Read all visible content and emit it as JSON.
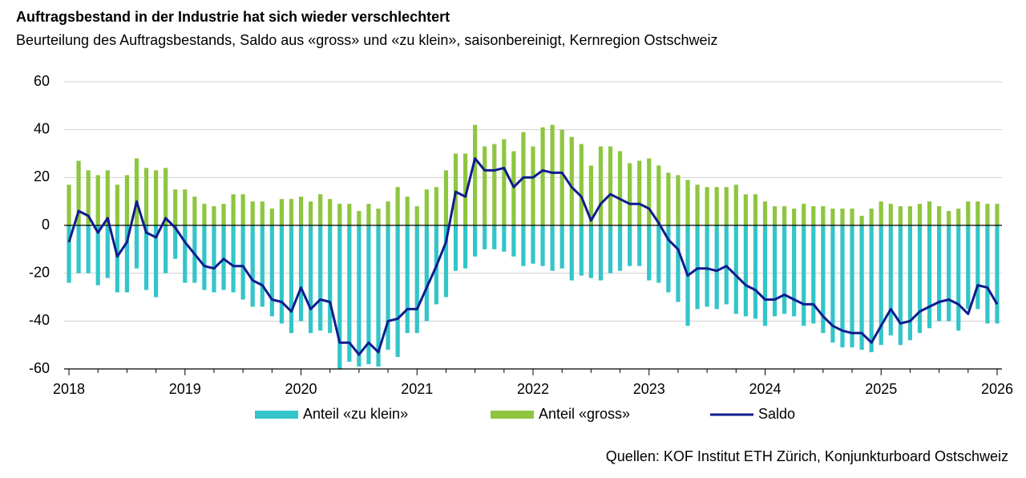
{
  "chart_data": {
    "type": "bar",
    "title": "Auftragsbestand in der Industrie hat sich wieder verschlechtert",
    "subtitle": "Beurteilung des Auftragsbestands, Saldo aus «gross» und «zu klein», saisonbereinigt, Kernregion Ostschweiz",
    "source": "Quellen: KOF Institut ETH Zürich, Konjunkturboard Ostschweiz",
    "categories": [
      "2018",
      null,
      null,
      null,
      null,
      null,
      null,
      null,
      null,
      null,
      null,
      null,
      "2019",
      null,
      null,
      null,
      null,
      null,
      null,
      null,
      null,
      null,
      null,
      null,
      "2020",
      null,
      null,
      null,
      null,
      null,
      null,
      null,
      null,
      null,
      null,
      null,
      "2021",
      null,
      null,
      null,
      null,
      null,
      null,
      null,
      null,
      null,
      null,
      null,
      "2022",
      null,
      null,
      null,
      null,
      null,
      null,
      null,
      null,
      null,
      null,
      null,
      "2023",
      null,
      null,
      null,
      null,
      null,
      null,
      null,
      null,
      null,
      null,
      null,
      "2024",
      null,
      null,
      null,
      null,
      null,
      null,
      null,
      null,
      null,
      null,
      null,
      "2025",
      null,
      null,
      null,
      null,
      null,
      null,
      null,
      null,
      null,
      null,
      null,
      "2026"
    ],
    "series": [
      {
        "name": "Anteil «zu klein»",
        "type": "bar",
        "color": "#33c5c9",
        "values": [
          -24,
          -20,
          -20,
          -25,
          -22,
          -28,
          -28,
          -18,
          -27,
          -30,
          -20,
          -14,
          -24,
          -24,
          -27,
          -28,
          -27,
          -28,
          -31,
          -34,
          -34,
          -38,
          -41,
          -45,
          -40,
          -45,
          -44,
          -45,
          -60,
          -57,
          -59,
          -58,
          -59,
          -52,
          -55,
          -45,
          -45,
          -40,
          -33,
          -30,
          -19,
          -18,
          -13,
          -10,
          -10,
          -11,
          -13,
          -17,
          -16,
          -17,
          -19,
          -18,
          -23,
          -21,
          -22,
          -23,
          -20,
          -19,
          -17,
          -17,
          -23,
          -24,
          -28,
          -32,
          -42,
          -35,
          -34,
          -35,
          -33,
          -37,
          -38,
          -39,
          -42,
          -38,
          -37,
          -38,
          -42,
          -41,
          -45,
          -49,
          -51,
          -51,
          -52,
          -53,
          -50,
          -46,
          -50,
          -48,
          -45,
          -43,
          -40,
          -40,
          -44,
          -35,
          -35,
          -41,
          -41
        ]
      },
      {
        "name": "Anteil «gross»",
        "type": "bar",
        "color": "#8dc63f",
        "values": [
          17,
          27,
          23,
          21,
          23,
          17,
          21,
          28,
          24,
          23,
          24,
          15,
          15,
          12,
          9,
          8,
          9,
          13,
          13,
          10,
          10,
          7,
          11,
          11,
          12,
          10,
          13,
          11,
          9,
          9,
          6,
          9,
          7,
          10,
          16,
          12,
          8,
          15,
          16,
          23,
          30,
          30,
          42,
          33,
          34,
          36,
          31,
          39,
          33,
          41,
          42,
          40,
          37,
          34,
          25,
          33,
          33,
          31,
          26,
          27,
          28,
          25,
          22,
          21,
          19,
          17,
          16,
          16,
          16,
          17,
          13,
          13,
          10,
          8,
          8,
          7,
          9,
          8,
          8,
          7,
          7,
          7,
          4,
          7,
          10,
          9,
          8,
          8,
          9,
          10,
          8,
          6,
          7,
          10,
          10,
          9,
          9
        ]
      },
      {
        "name": "Saldo",
        "type": "line",
        "color": "#0f1c8e",
        "values": [
          -7,
          6,
          4,
          -3,
          3,
          -13,
          -7,
          10,
          -3,
          -5,
          3,
          -1,
          -7,
          -12,
          -17,
          -18,
          -14,
          -17,
          -17,
          -23,
          -25,
          -31,
          -32,
          -36,
          -26,
          -35,
          -31,
          -32,
          -49,
          -49,
          -54,
          -49,
          -53,
          -40,
          -39,
          -35,
          -35,
          -26,
          -17,
          -7,
          14,
          12,
          28,
          23,
          23,
          24,
          16,
          20,
          20,
          23,
          22,
          22,
          16,
          12,
          2,
          9,
          13,
          11,
          9,
          9,
          7,
          1,
          -6,
          -10,
          -21,
          -18,
          -18,
          -19,
          -17,
          -21,
          -25,
          -27,
          -31,
          -31,
          -29,
          -31,
          -33,
          -33,
          -38,
          -42,
          -44,
          -45,
          -45,
          -49,
          -42,
          -35,
          -41,
          -40,
          -36,
          -34,
          -32,
          -31,
          -33,
          -37,
          -25,
          -26,
          -33
        ]
      }
    ],
    "ylim": [
      -60,
      60
    ],
    "yticks": [
      -60,
      -40,
      -20,
      0,
      20,
      40,
      60
    ],
    "grid": true
  }
}
